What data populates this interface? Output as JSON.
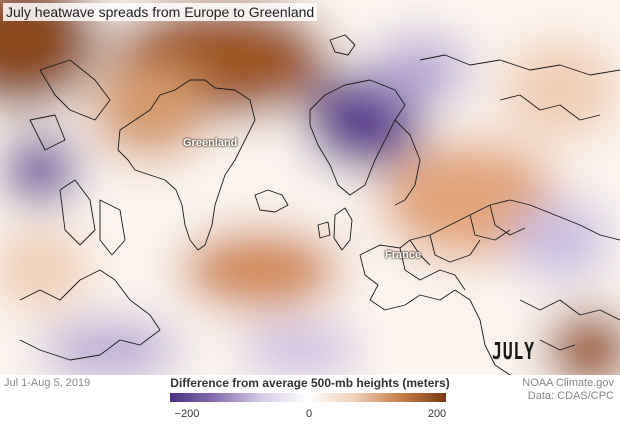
{
  "title": "July heatwave spreads from Europe to Greenland",
  "month": "JULY",
  "places": {
    "greenland": "Greenland",
    "france": "France"
  },
  "footer": {
    "period": "Jul 1-Aug 5, 2019",
    "legend_title": "Difference from average 500-mb heights (meters)",
    "legend_ticks": {
      "min": "−200",
      "mid": "0",
      "max": "200"
    },
    "credit_line1": "NOAA Climate.gov",
    "credit_line2": "Data: CDAS/CPC"
  },
  "colors": {
    "positive": "#9c5524",
    "negative": "#5a3d8f",
    "neutral": "#ffffff",
    "coastline": "#1a1a1a"
  }
}
